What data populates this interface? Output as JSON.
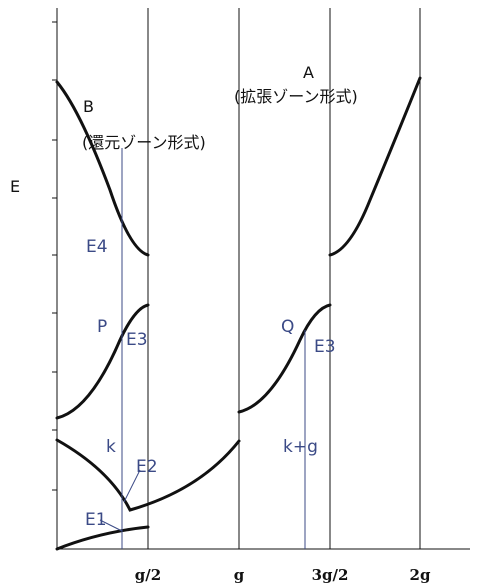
{
  "axis_label": "E",
  "scheme_a": {
    "letter": "A",
    "name": "(拡張ゾーン形式)"
  },
  "scheme_b": {
    "letter": "B",
    "name": "(還元ゾーン形式)"
  },
  "levels": [
    "E1",
    "E2",
    "E3",
    "E3",
    "E4"
  ],
  "points": [
    "P",
    "Q"
  ],
  "wavevectors": [
    "k",
    "k+g"
  ],
  "x_labels": [
    "g/2",
    "g",
    "3g/2",
    "2g"
  ]
}
